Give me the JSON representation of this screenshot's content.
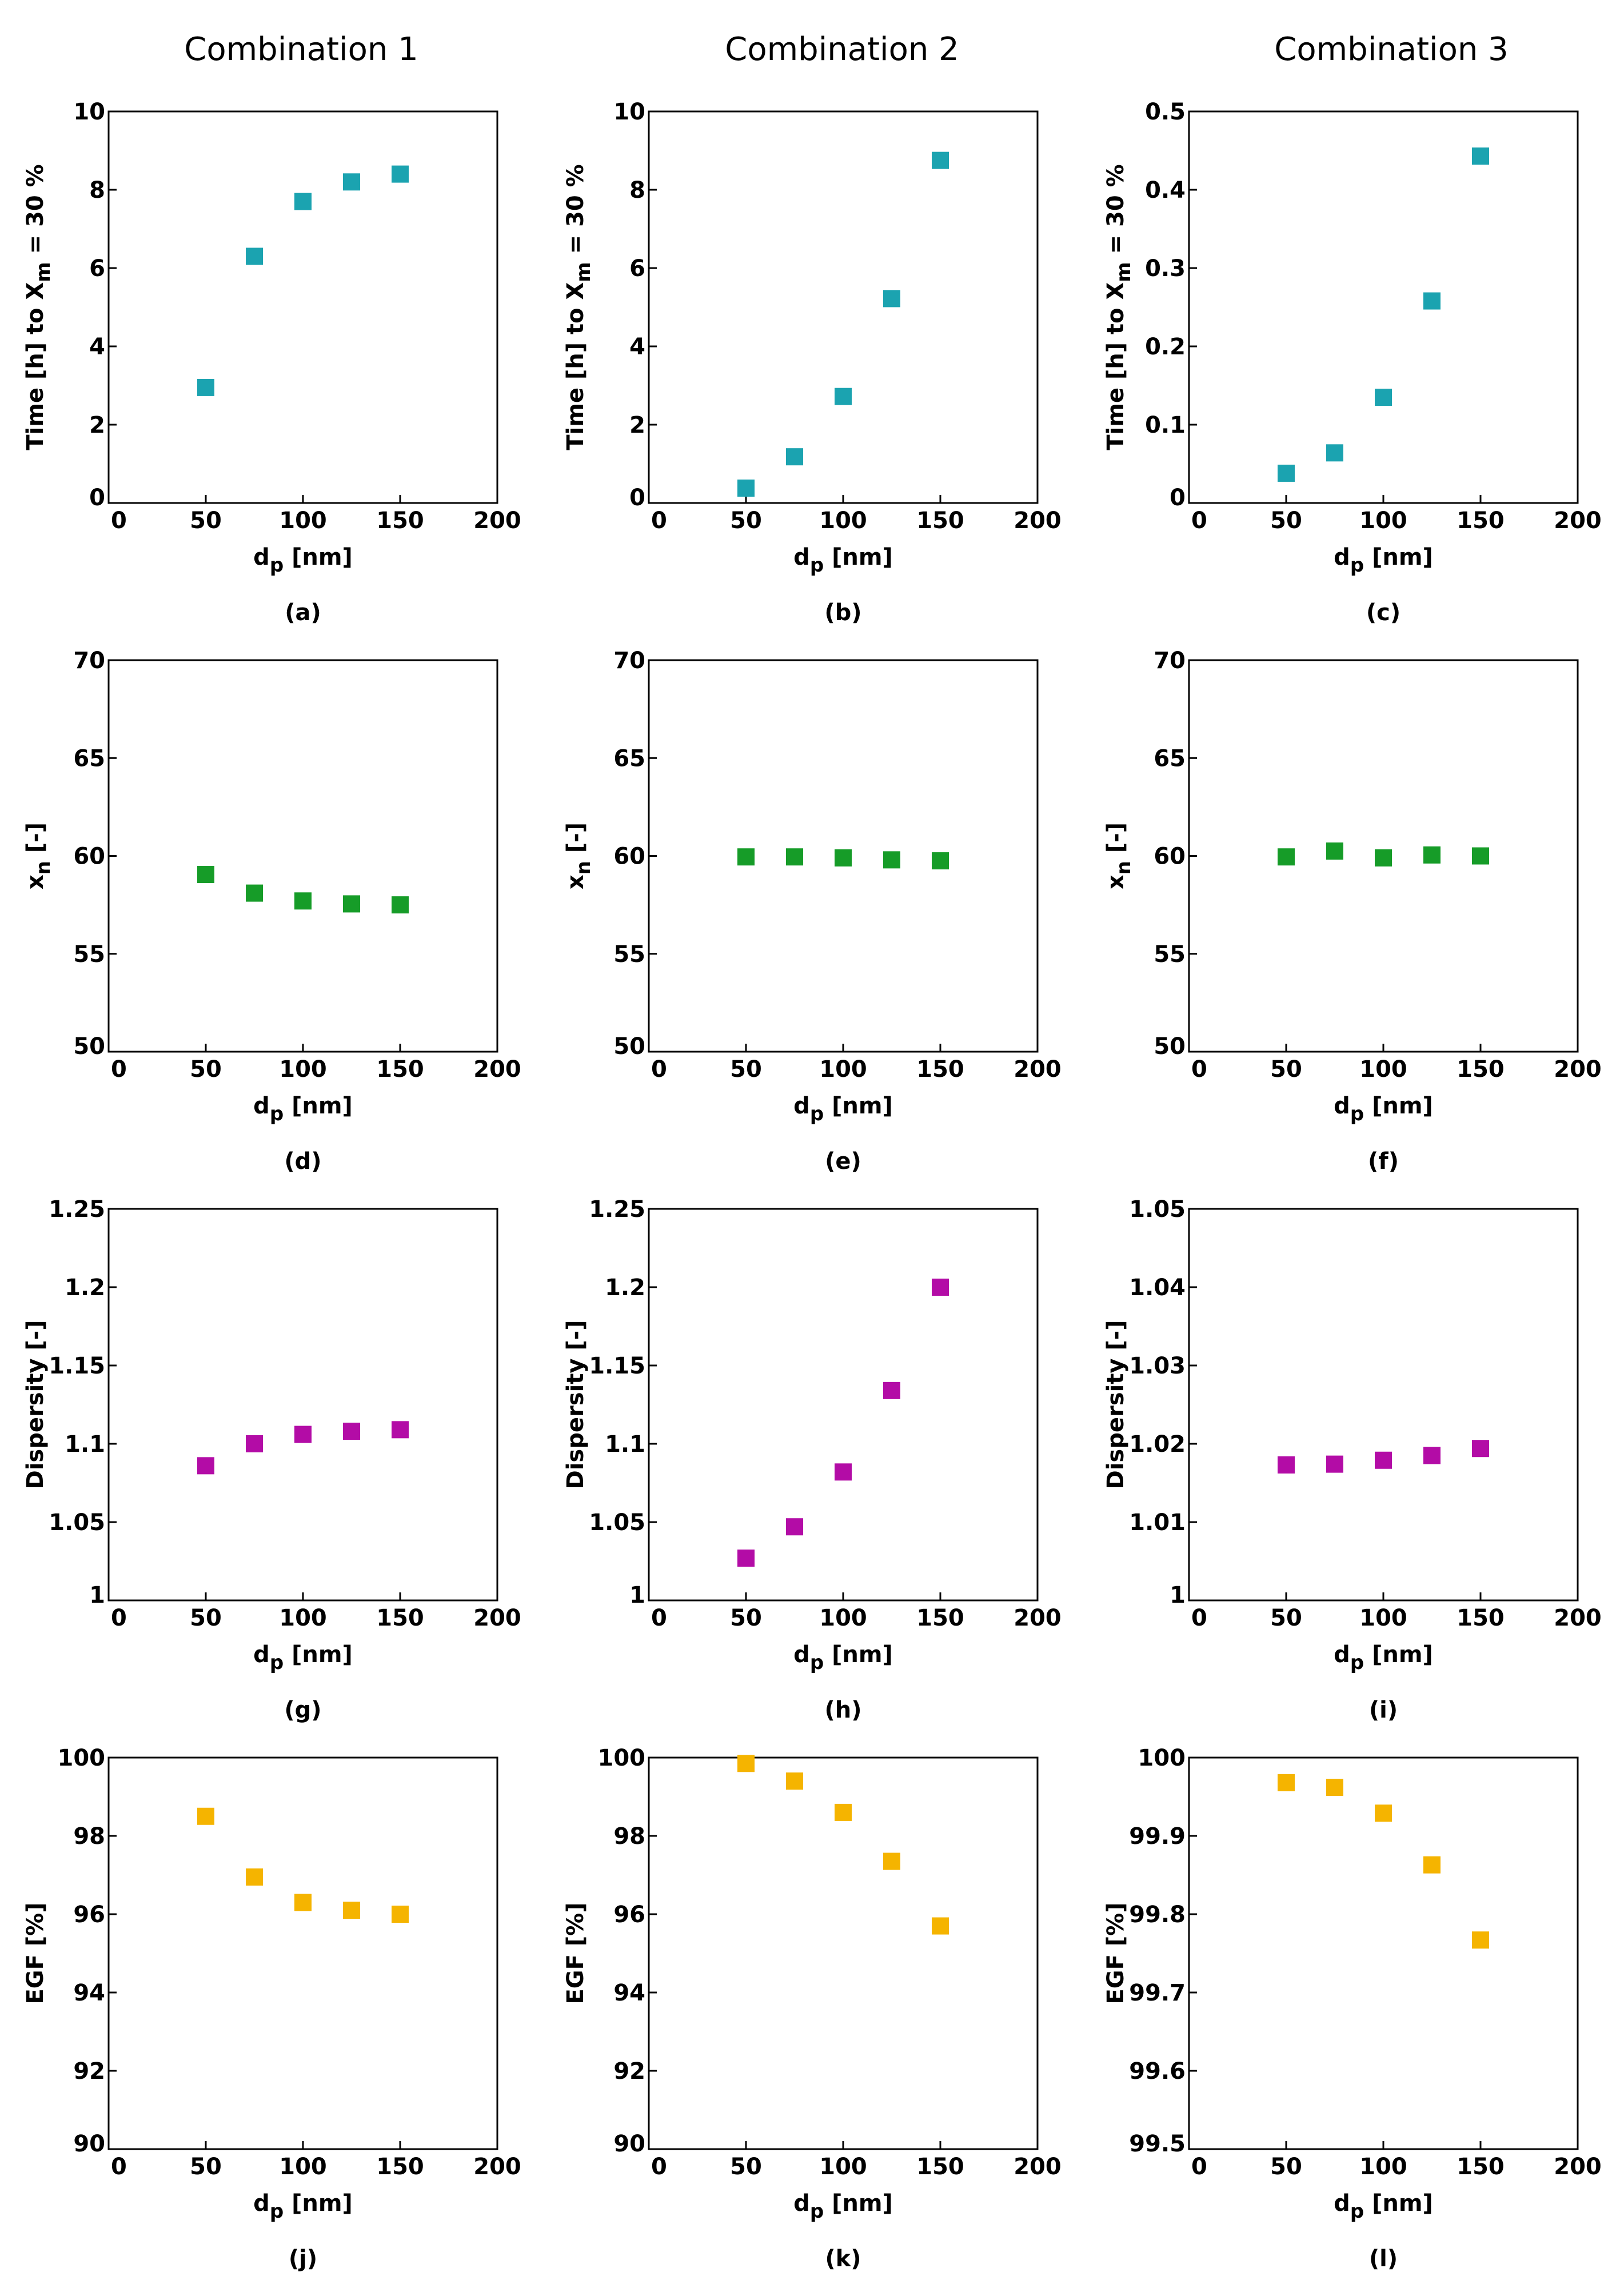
{
  "column_titles": [
    "Combination 1",
    "Combination 2",
    "Combination 3"
  ],
  "colors": {
    "time": "#1ba3b0",
    "xn": "#169c28",
    "dispersity": "#b30ca6",
    "egf": "#f5b400"
  },
  "chart_data": [
    {
      "id": "a",
      "caption": "(a)",
      "type": "scatter",
      "color_key": "time",
      "ylabel_kind": "time",
      "xlabel_main": "d",
      "xlabel_sub": "p",
      "xlabel_rest": " [nm]",
      "ylabel": "Time [h] to X",
      "ylabel_sub": "m",
      "ylabel_rest": " = 30 %",
      "xlim": [
        0,
        200
      ],
      "xticks": [
        "0",
        "50",
        "100",
        "150",
        "200"
      ],
      "ylim": [
        0,
        10
      ],
      "yticks": [
        "0",
        "2",
        "4",
        "6",
        "8",
        "10"
      ],
      "x": [
        50,
        75,
        100,
        125,
        150
      ],
      "y": [
        2.95,
        6.3,
        7.7,
        8.2,
        8.4
      ]
    },
    {
      "id": "b",
      "caption": "(b)",
      "type": "scatter",
      "color_key": "time",
      "ylabel_kind": "time",
      "xlabel_main": "d",
      "xlabel_sub": "p",
      "xlabel_rest": " [nm]",
      "ylabel": "Time [h] to X",
      "ylabel_sub": "m",
      "ylabel_rest": " = 30 %",
      "xlim": [
        0,
        200
      ],
      "xticks": [
        "0",
        "50",
        "100",
        "150",
        "200"
      ],
      "ylim": [
        0,
        10
      ],
      "yticks": [
        "0",
        "2",
        "4",
        "6",
        "8",
        "10"
      ],
      "x": [
        50,
        75,
        100,
        125,
        150
      ],
      "y": [
        0.38,
        1.18,
        2.72,
        5.22,
        8.75
      ]
    },
    {
      "id": "c",
      "caption": "(c)",
      "type": "scatter",
      "color_key": "time",
      "ylabel_kind": "time",
      "xlabel_main": "d",
      "xlabel_sub": "p",
      "xlabel_rest": " [nm]",
      "ylabel": "Time [h] to X",
      "ylabel_sub": "m",
      "ylabel_rest": " = 30 %",
      "xlim": [
        0,
        200
      ],
      "xticks": [
        "0",
        "50",
        "100",
        "150",
        "200"
      ],
      "ylim": [
        0,
        0.5
      ],
      "yticks": [
        "0",
        "0.1",
        "0.2",
        "0.3",
        "0.4",
        "0.5"
      ],
      "x": [
        50,
        75,
        100,
        125,
        150
      ],
      "y": [
        0.038,
        0.064,
        0.135,
        0.258,
        0.443
      ]
    },
    {
      "id": "d",
      "caption": "(d)",
      "type": "scatter",
      "color_key": "xn",
      "ylabel_kind": "xn",
      "xlabel_main": "d",
      "xlabel_sub": "p",
      "xlabel_rest": " [nm]",
      "ylabel": "x",
      "ylabel_sub": "n",
      "ylabel_rest": " [-]",
      "xlim": [
        0,
        200
      ],
      "xticks": [
        "0",
        "50",
        "100",
        "150",
        "200"
      ],
      "ylim": [
        50,
        70
      ],
      "yticks": [
        "50",
        "55",
        "60",
        "65",
        "70"
      ],
      "x": [
        50,
        75,
        100,
        125,
        150
      ],
      "y": [
        59.05,
        58.1,
        57.7,
        57.55,
        57.5
      ]
    },
    {
      "id": "e",
      "caption": "(e)",
      "type": "scatter",
      "color_key": "xn",
      "ylabel_kind": "xn",
      "xlabel_main": "d",
      "xlabel_sub": "p",
      "xlabel_rest": " [nm]",
      "ylabel": "x",
      "ylabel_sub": "n",
      "ylabel_rest": " [-]",
      "xlim": [
        0,
        200
      ],
      "xticks": [
        "0",
        "50",
        "100",
        "150",
        "200"
      ],
      "ylim": [
        50,
        70
      ],
      "yticks": [
        "50",
        "55",
        "60",
        "65",
        "70"
      ],
      "x": [
        50,
        75,
        100,
        125,
        150
      ],
      "y": [
        59.95,
        59.95,
        59.9,
        59.8,
        59.75
      ]
    },
    {
      "id": "f",
      "caption": "(f)",
      "type": "scatter",
      "color_key": "xn",
      "ylabel_kind": "xn",
      "xlabel_main": "d",
      "xlabel_sub": "p",
      "xlabel_rest": " [nm]",
      "ylabel": "x",
      "ylabel_sub": "n",
      "ylabel_rest": " [-]",
      "xlim": [
        0,
        200
      ],
      "xticks": [
        "0",
        "50",
        "100",
        "150",
        "200"
      ],
      "ylim": [
        50,
        70
      ],
      "yticks": [
        "50",
        "55",
        "60",
        "65",
        "70"
      ],
      "x": [
        50,
        75,
        100,
        125,
        150
      ],
      "y": [
        59.95,
        60.25,
        59.9,
        60.05,
        60.0
      ]
    },
    {
      "id": "g",
      "caption": "(g)",
      "type": "scatter",
      "color_key": "dispersity",
      "ylabel_kind": "plain",
      "xlabel_main": "d",
      "xlabel_sub": "p",
      "xlabel_rest": " [nm]",
      "ylabel": "Dispersity [-]",
      "ylabel_sub": "",
      "ylabel_rest": "",
      "xlim": [
        0,
        200
      ],
      "xticks": [
        "0",
        "50",
        "100",
        "150",
        "200"
      ],
      "ylim": [
        1,
        1.25
      ],
      "yticks": [
        "1",
        "1.05",
        "1.1",
        "1.15",
        "1.2",
        "1.25"
      ],
      "x": [
        50,
        75,
        100,
        125,
        150
      ],
      "y": [
        1.086,
        1.1,
        1.106,
        1.108,
        1.109
      ]
    },
    {
      "id": "h",
      "caption": "(h)",
      "type": "scatter",
      "color_key": "dispersity",
      "ylabel_kind": "plain",
      "xlabel_main": "d",
      "xlabel_sub": "p",
      "xlabel_rest": " [nm]",
      "ylabel": "Dispersity [-]",
      "ylabel_sub": "",
      "ylabel_rest": "",
      "xlim": [
        0,
        200
      ],
      "xticks": [
        "0",
        "50",
        "100",
        "150",
        "200"
      ],
      "ylim": [
        1,
        1.25
      ],
      "yticks": [
        "1",
        "1.05",
        "1.1",
        "1.15",
        "1.2",
        "1.25"
      ],
      "x": [
        50,
        75,
        100,
        125,
        150
      ],
      "y": [
        1.027,
        1.047,
        1.082,
        1.134,
        1.2
      ]
    },
    {
      "id": "i",
      "caption": "(i)",
      "type": "scatter",
      "color_key": "dispersity",
      "ylabel_kind": "plain",
      "xlabel_main": "d",
      "xlabel_sub": "p",
      "xlabel_rest": " [nm]",
      "ylabel": "Dispersity [-]",
      "ylabel_sub": "",
      "ylabel_rest": "",
      "xlim": [
        0,
        200
      ],
      "xticks": [
        "0",
        "50",
        "100",
        "150",
        "200"
      ],
      "ylim": [
        1,
        1.05
      ],
      "yticks": [
        "1",
        "1.01",
        "1.02",
        "1.03",
        "1.04",
        "1.05"
      ],
      "x": [
        50,
        75,
        100,
        125,
        150
      ],
      "y": [
        1.0173,
        1.0174,
        1.0179,
        1.0185,
        1.0194
      ]
    },
    {
      "id": "j",
      "caption": "(j)",
      "type": "scatter",
      "color_key": "egf",
      "ylabel_kind": "plain",
      "xlabel_main": "d",
      "xlabel_sub": "p",
      "xlabel_rest": " [nm]",
      "ylabel": "EGF [%]",
      "ylabel_sub": "",
      "ylabel_rest": "",
      "xlim": [
        0,
        200
      ],
      "xticks": [
        "0",
        "50",
        "100",
        "150",
        "200"
      ],
      "ylim": [
        90,
        100
      ],
      "yticks": [
        "90",
        "92",
        "94",
        "96",
        "98",
        "100"
      ],
      "x": [
        50,
        75,
        100,
        125,
        150
      ],
      "y": [
        98.5,
        96.95,
        96.3,
        96.1,
        96.0
      ]
    },
    {
      "id": "k",
      "caption": "(k)",
      "type": "scatter",
      "color_key": "egf",
      "ylabel_kind": "plain",
      "xlabel_main": "d",
      "xlabel_sub": "p",
      "xlabel_rest": " [nm]",
      "ylabel": "EGF [%]",
      "ylabel_sub": "",
      "ylabel_rest": "",
      "xlim": [
        0,
        200
      ],
      "xticks": [
        "0",
        "50",
        "100",
        "150",
        "200"
      ],
      "ylim": [
        90,
        100
      ],
      "yticks": [
        "90",
        "92",
        "94",
        "96",
        "98",
        "100"
      ],
      "x": [
        50,
        75,
        100,
        125,
        150
      ],
      "y": [
        99.85,
        99.4,
        98.6,
        97.35,
        95.7
      ]
    },
    {
      "id": "l",
      "caption": "(l)",
      "type": "scatter",
      "color_key": "egf",
      "ylabel_kind": "plain",
      "xlabel_main": "d",
      "xlabel_sub": "p",
      "xlabel_rest": " [nm]",
      "ylabel": "EGF [%]",
      "ylabel_sub": "",
      "ylabel_rest": "",
      "xlim": [
        0,
        200
      ],
      "xticks": [
        "0",
        "50",
        "100",
        "150",
        "200"
      ],
      "ylim": [
        99.5,
        100
      ],
      "yticks": [
        "99.5",
        "99.6",
        "99.7",
        "99.8",
        "99.9",
        "100"
      ],
      "x": [
        50,
        75,
        100,
        125,
        150
      ],
      "y": [
        99.968,
        99.962,
        99.929,
        99.863,
        99.767
      ]
    }
  ]
}
